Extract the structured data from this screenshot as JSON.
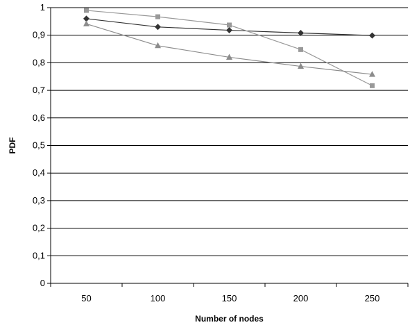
{
  "chart_data": {
    "type": "line",
    "title": "",
    "xlabel": "Number of nodes",
    "ylabel": "PDF",
    "categories": [
      "50",
      "100",
      "150",
      "200",
      "250"
    ],
    "ylim": [
      0,
      1
    ],
    "yticks": [
      "0",
      "0,1",
      "0,2",
      "0,3",
      "0,4",
      "0,5",
      "0,6",
      "0,7",
      "0,8",
      "0,9",
      "1"
    ],
    "grid": true,
    "legend": "none",
    "series": [
      {
        "marker": "diamond",
        "color": "#333333",
        "values": [
          0.96,
          0.93,
          0.918,
          0.908,
          0.899
        ]
      },
      {
        "marker": "square",
        "color": "#999999",
        "values": [
          0.99,
          0.967,
          0.937,
          0.848,
          0.717
        ]
      },
      {
        "marker": "triangle",
        "color": "#8c8c8c",
        "values": [
          0.941,
          0.862,
          0.82,
          0.787,
          0.758
        ]
      }
    ]
  }
}
